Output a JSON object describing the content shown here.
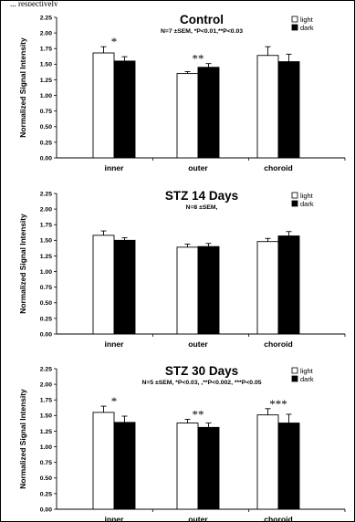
{
  "top_note": "...  respectively",
  "colors": {
    "light": "#ffffff",
    "dark": "#000000",
    "axis": "#000000",
    "error": "#000000"
  },
  "chart_data": [
    {
      "type": "bar",
      "title": "Control",
      "subtitle": "N=7 ±SEM, *P<0.01,**P<0.03",
      "ylabel": "Normalized Signal Intensity",
      "xlabel": "",
      "categories": [
        "inner",
        "outer",
        "choroid"
      ],
      "ylim": [
        0,
        2.25
      ],
      "yticks": [
        "0.00",
        "0.25",
        "0.50",
        "0.75",
        "1.00",
        "1.25",
        "1.50",
        "1.75",
        "2.00",
        "2.25"
      ],
      "legend": {
        "position": "top-right",
        "entries": [
          "light",
          "dark"
        ]
      },
      "grid": false,
      "series": [
        {
          "name": "light",
          "values": [
            1.68,
            1.35,
            1.64
          ],
          "errors": [
            0.1,
            0.03,
            0.14
          ]
        },
        {
          "name": "dark",
          "values": [
            1.55,
            1.45,
            1.54
          ],
          "errors": [
            0.07,
            0.06,
            0.12
          ]
        }
      ],
      "annotations": [
        {
          "category": "inner",
          "text": "*"
        },
        {
          "category": "outer",
          "text": "**"
        }
      ]
    },
    {
      "type": "bar",
      "title": "STZ 14 Days",
      "subtitle": "N=8 ±SEM,",
      "ylabel": "Normalized Signal Intensity",
      "xlabel": "",
      "categories": [
        "inner",
        "outer",
        "choroid"
      ],
      "ylim": [
        0,
        2.25
      ],
      "yticks": [
        "0.00",
        "0.25",
        "0.50",
        "0.75",
        "1.00",
        "1.25",
        "1.50",
        "1.75",
        "2.00",
        "2.25"
      ],
      "legend": {
        "position": "top-right",
        "entries": [
          "light",
          "dark"
        ]
      },
      "grid": false,
      "series": [
        {
          "name": "light",
          "values": [
            1.58,
            1.39,
            1.48
          ],
          "errors": [
            0.07,
            0.05,
            0.05
          ]
        },
        {
          "name": "dark",
          "values": [
            1.5,
            1.4,
            1.57
          ],
          "errors": [
            0.04,
            0.05,
            0.07
          ]
        }
      ],
      "annotations": []
    },
    {
      "type": "bar",
      "title": "STZ 30 Days",
      "subtitle": "N=5 ±SEM, *P<0.03, ,**P<0.002, ***P<0.05",
      "ylabel": "Normalized Signal Intensity",
      "xlabel": "",
      "categories": [
        "inner",
        "outer",
        "choroid"
      ],
      "ylim": [
        0,
        2.25
      ],
      "yticks": [
        "0.00",
        "0.25",
        "0.50",
        "0.75",
        "1.00",
        "1.25",
        "1.50",
        "1.75",
        "2.00",
        "2.25"
      ],
      "legend": {
        "position": "top-right",
        "entries": [
          "light",
          "dark"
        ]
      },
      "grid": false,
      "series": [
        {
          "name": "light",
          "values": [
            1.55,
            1.38,
            1.51
          ],
          "errors": [
            0.1,
            0.06,
            0.1
          ]
        },
        {
          "name": "dark",
          "values": [
            1.39,
            1.31,
            1.38
          ],
          "errors": [
            0.1,
            0.07,
            0.14
          ]
        }
      ],
      "annotations": [
        {
          "category": "inner",
          "text": "*"
        },
        {
          "category": "outer",
          "text": "**"
        },
        {
          "category": "choroid",
          "text": "***"
        }
      ]
    }
  ]
}
